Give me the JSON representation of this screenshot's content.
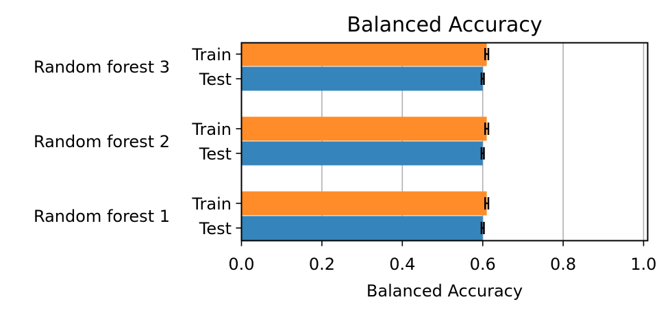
{
  "chart_data": {
    "type": "bar",
    "orientation": "horizontal",
    "title": "Balanced Accuracy",
    "xlabel": "Balanced Accuracy",
    "ylabel": "",
    "xlim": [
      0.0,
      1.0
    ],
    "xticks": [
      "0.0",
      "0.2",
      "0.4",
      "0.6",
      "0.8",
      "1.0"
    ],
    "grid": "vertical",
    "groups": [
      "Random forest 1",
      "Random forest 2",
      "Random forest 3"
    ],
    "split_labels": [
      "Train",
      "Test"
    ],
    "series": [
      {
        "split": "Train",
        "color": "#ff8c28",
        "values": [
          0.61,
          0.61,
          0.61
        ],
        "errors": [
          0.004,
          0.004,
          0.004
        ]
      },
      {
        "split": "Test",
        "color": "#3584bb",
        "values": [
          0.6,
          0.6,
          0.6
        ],
        "errors": [
          0.003,
          0.003,
          0.003
        ]
      }
    ]
  }
}
